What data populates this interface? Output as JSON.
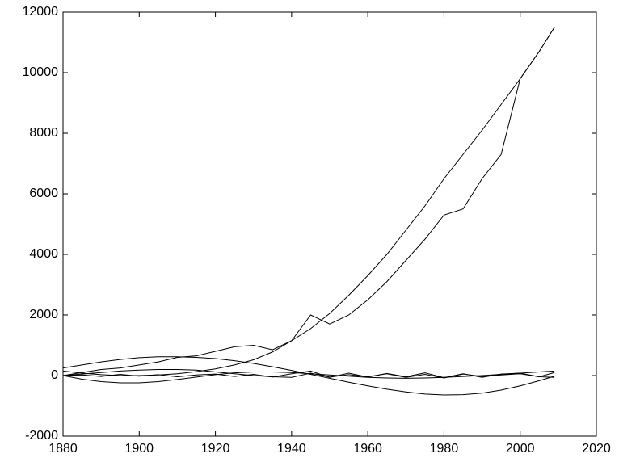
{
  "chart_data": {
    "type": "line",
    "x": [
      1880,
      1885,
      1890,
      1895,
      1900,
      1905,
      1910,
      1915,
      1920,
      1925,
      1930,
      1935,
      1940,
      1945,
      1950,
      1955,
      1960,
      1965,
      1970,
      1975,
      1980,
      1985,
      1990,
      1995,
      2000,
      2005,
      2009
    ],
    "series": [
      {
        "color": "#000000",
        "values": [
          0,
          100,
          200,
          250,
          350,
          450,
          600,
          650,
          800,
          950,
          1000,
          850,
          1150,
          2000,
          1700,
          2000,
          2500,
          3100,
          3800,
          4500,
          5300,
          5500,
          6500,
          7300,
          9800,
          10700,
          11500
        ]
      },
      {
        "color": "#000000",
        "values": [
          150,
          80,
          30,
          0,
          0,
          20,
          60,
          130,
          220,
          350,
          520,
          780,
          1150,
          1550,
          2050,
          2650,
          3300,
          4000,
          4800,
          5600,
          6500,
          7300,
          8100,
          8950,
          9800,
          10700,
          11500
        ]
      },
      {
        "color": "#000000",
        "values": [
          250,
          350,
          450,
          530,
          590,
          620,
          620,
          600,
          560,
          490,
          400,
          290,
          170,
          40,
          -90,
          -220,
          -340,
          -450,
          -540,
          -610,
          -640,
          -630,
          -580,
          -480,
          -340,
          -170,
          -20
        ]
      },
      {
        "color": "#000000",
        "values": [
          0,
          -120,
          -200,
          -240,
          -240,
          -200,
          -130,
          -50,
          30,
          90,
          120,
          120,
          100,
          60,
          20,
          -20,
          -60,
          -80,
          -90,
          -80,
          -60,
          -30,
          0,
          40,
          80,
          120,
          150
        ]
      },
      {
        "color": "#000000",
        "values": [
          0,
          50,
          100,
          150,
          180,
          200,
          200,
          180,
          120,
          60,
          0,
          -40,
          -60,
          80,
          -50,
          30,
          -40,
          60,
          -60,
          40,
          -80,
          50,
          -30,
          20,
          60,
          -40,
          100
        ]
      },
      {
        "color": "#000000",
        "values": [
          0,
          20,
          -30,
          40,
          -20,
          30,
          -40,
          20,
          50,
          -30,
          40,
          -50,
          60,
          150,
          -60,
          80,
          -50,
          70,
          -40,
          90,
          -70,
          60,
          -60,
          50,
          80,
          -40,
          -60
        ]
      }
    ],
    "xlim": [
      1880,
      2020
    ],
    "xticks": [
      1880,
      1900,
      1920,
      1940,
      1960,
      1980,
      2000,
      2020
    ],
    "ylim": [
      -2000,
      12000
    ],
    "yticks": [
      -2000,
      0,
      2000,
      4000,
      6000,
      8000,
      10000,
      12000
    ],
    "grid": false
  }
}
